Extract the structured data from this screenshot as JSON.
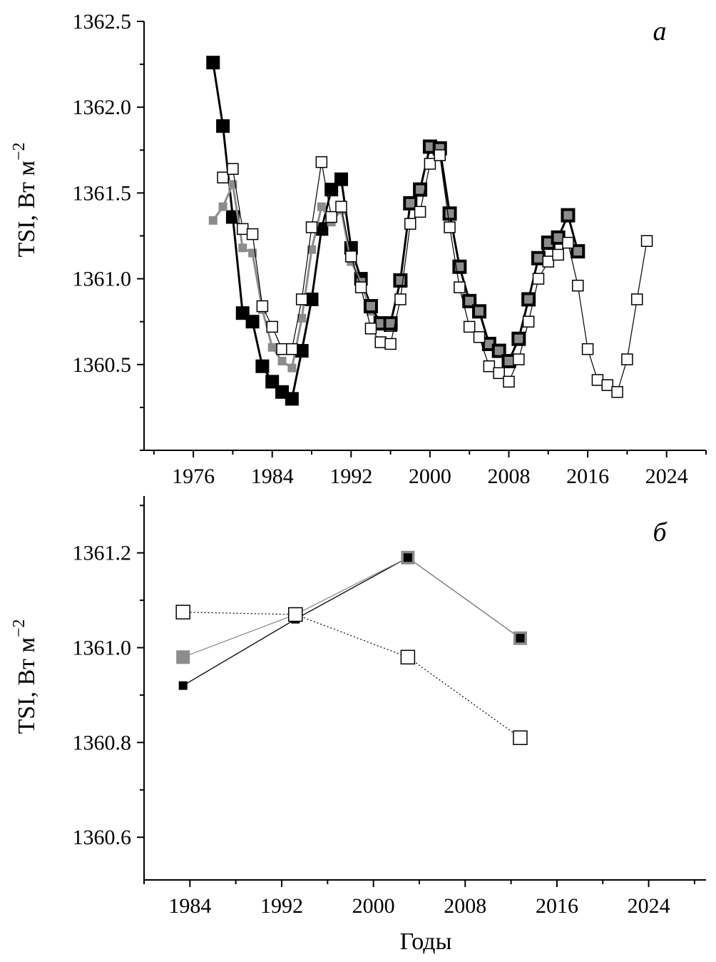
{
  "chart_data": [
    {
      "panel": "a",
      "type": "line",
      "panel_label": "а",
      "ylabel": "TSI, Вт м",
      "ylabel_superscript": "−2",
      "xlim": [
        1971,
        2028
      ],
      "ylim": [
        1360.0,
        1362.5
      ],
      "xticks": [
        1976,
        1984,
        1992,
        2000,
        2008,
        2016,
        2024
      ],
      "yticks": [
        1360.5,
        1361.0,
        1361.5,
        1362.0,
        1362.5
      ],
      "grid": false,
      "series": [
        {
          "style": "black-filled-square",
          "x": [
            1978,
            1979,
            1980,
            1981,
            1982,
            1983,
            1984,
            1985,
            1986,
            1987,
            1988,
            1989,
            1990,
            1991,
            1992,
            1993,
            1994,
            1995,
            1996
          ],
          "y": [
            1362.26,
            1361.89,
            1361.36,
            1360.8,
            1360.75,
            1360.49,
            1360.4,
            1360.34,
            1360.3,
            1360.58,
            1360.88,
            1361.29,
            1361.52,
            1361.58,
            1361.18,
            1361.0,
            1360.84,
            1360.74,
            1360.73
          ]
        },
        {
          "style": "gray-small-square",
          "x": [
            1978,
            1979,
            1980,
            1981,
            1982,
            1983,
            1984,
            1985,
            1986,
            1987,
            1988,
            1989,
            1990,
            1991,
            1992,
            1993,
            1994,
            1995,
            1996
          ],
          "y": [
            1361.34,
            1361.42,
            1361.55,
            1361.18,
            1361.15,
            1360.82,
            1360.6,
            1360.52,
            1360.48,
            1360.77,
            1361.17,
            1361.42,
            1361.33,
            1361.4,
            1361.1,
            1360.98,
            1360.81,
            1360.73,
            1360.72
          ]
        },
        {
          "style": "gray-bold-outlined-square",
          "x": [
            1994,
            1995,
            1996,
            1997,
            1998,
            1999,
            2000,
            2001,
            2002,
            2003,
            2004,
            2005,
            2006,
            2007,
            2008,
            2009,
            2010,
            2011,
            2012,
            2013,
            2014,
            2015
          ],
          "y": [
            1360.84,
            1360.74,
            1360.74,
            1360.99,
            1361.44,
            1361.52,
            1361.77,
            1361.76,
            1361.38,
            1361.07,
            1360.87,
            1360.81,
            1360.62,
            1360.58,
            1360.52,
            1360.65,
            1360.88,
            1361.12,
            1361.21,
            1361.24,
            1361.37,
            1361.16
          ]
        },
        {
          "style": "white-open-square",
          "x": [
            1979,
            1980,
            1981,
            1982,
            1983,
            1984,
            1985,
            1986,
            1987,
            1988,
            1989,
            1990,
            1991,
            1992,
            1993,
            1994,
            1995,
            1996,
            1997,
            1998,
            1999,
            2000,
            2001,
            2002,
            2003,
            2004,
            2005,
            2006,
            2007,
            2008,
            2009,
            2010,
            2011,
            2012,
            2013,
            2014,
            2015,
            2016,
            2017,
            2018,
            2019,
            2020,
            2021,
            2022
          ],
          "y": [
            1361.59,
            1361.64,
            1361.29,
            1361.26,
            1360.84,
            1360.72,
            1360.59,
            1360.59,
            1360.88,
            1361.3,
            1361.68,
            1361.36,
            1361.42,
            1361.13,
            1360.95,
            1360.71,
            1360.63,
            1360.62,
            1360.88,
            1361.32,
            1361.39,
            1361.67,
            1361.72,
            1361.3,
            1360.95,
            1360.72,
            1360.66,
            1360.49,
            1360.45,
            1360.4,
            1360.53,
            1360.75,
            1361.0,
            1361.1,
            1361.14,
            1361.21,
            1360.96,
            1360.59,
            1360.41,
            1360.38,
            1360.34,
            1360.53,
            1360.88,
            1361.22
          ]
        }
      ]
    },
    {
      "panel": "b",
      "type": "line",
      "panel_label": "б",
      "ylabel": "TSI, Вт м",
      "ylabel_superscript": "−2",
      "xlabel": "Годы",
      "xlim": [
        1980,
        2029
      ],
      "ylim": [
        1360.51,
        1361.32
      ],
      "xticks": [
        1984,
        1992,
        2000,
        2008,
        2016,
        2024
      ],
      "yticks": [
        1360.6,
        1360.8,
        1361.0,
        1361.2
      ],
      "grid": false,
      "series": [
        {
          "style": "black-small-square-solid",
          "x": [
            1983.4,
            1993.2,
            2003.0,
            2012.8
          ],
          "y": [
            1360.92,
            1361.06,
            1361.19,
            1361.02
          ]
        },
        {
          "style": "gray-square-solid",
          "x": [
            1983.4,
            1993.2,
            2003.0,
            2012.8
          ],
          "y": [
            1360.98,
            1361.07,
            1361.19,
            1361.02
          ]
        },
        {
          "style": "white-open-square-dotted",
          "x": [
            1983.4,
            1993.2,
            2003.0,
            2012.8
          ],
          "y": [
            1361.075,
            1361.07,
            1360.98,
            1360.81
          ]
        }
      ]
    }
  ],
  "styles": {
    "black": "#000000",
    "gray": "#8c8c8c",
    "white": "#ffffff"
  }
}
